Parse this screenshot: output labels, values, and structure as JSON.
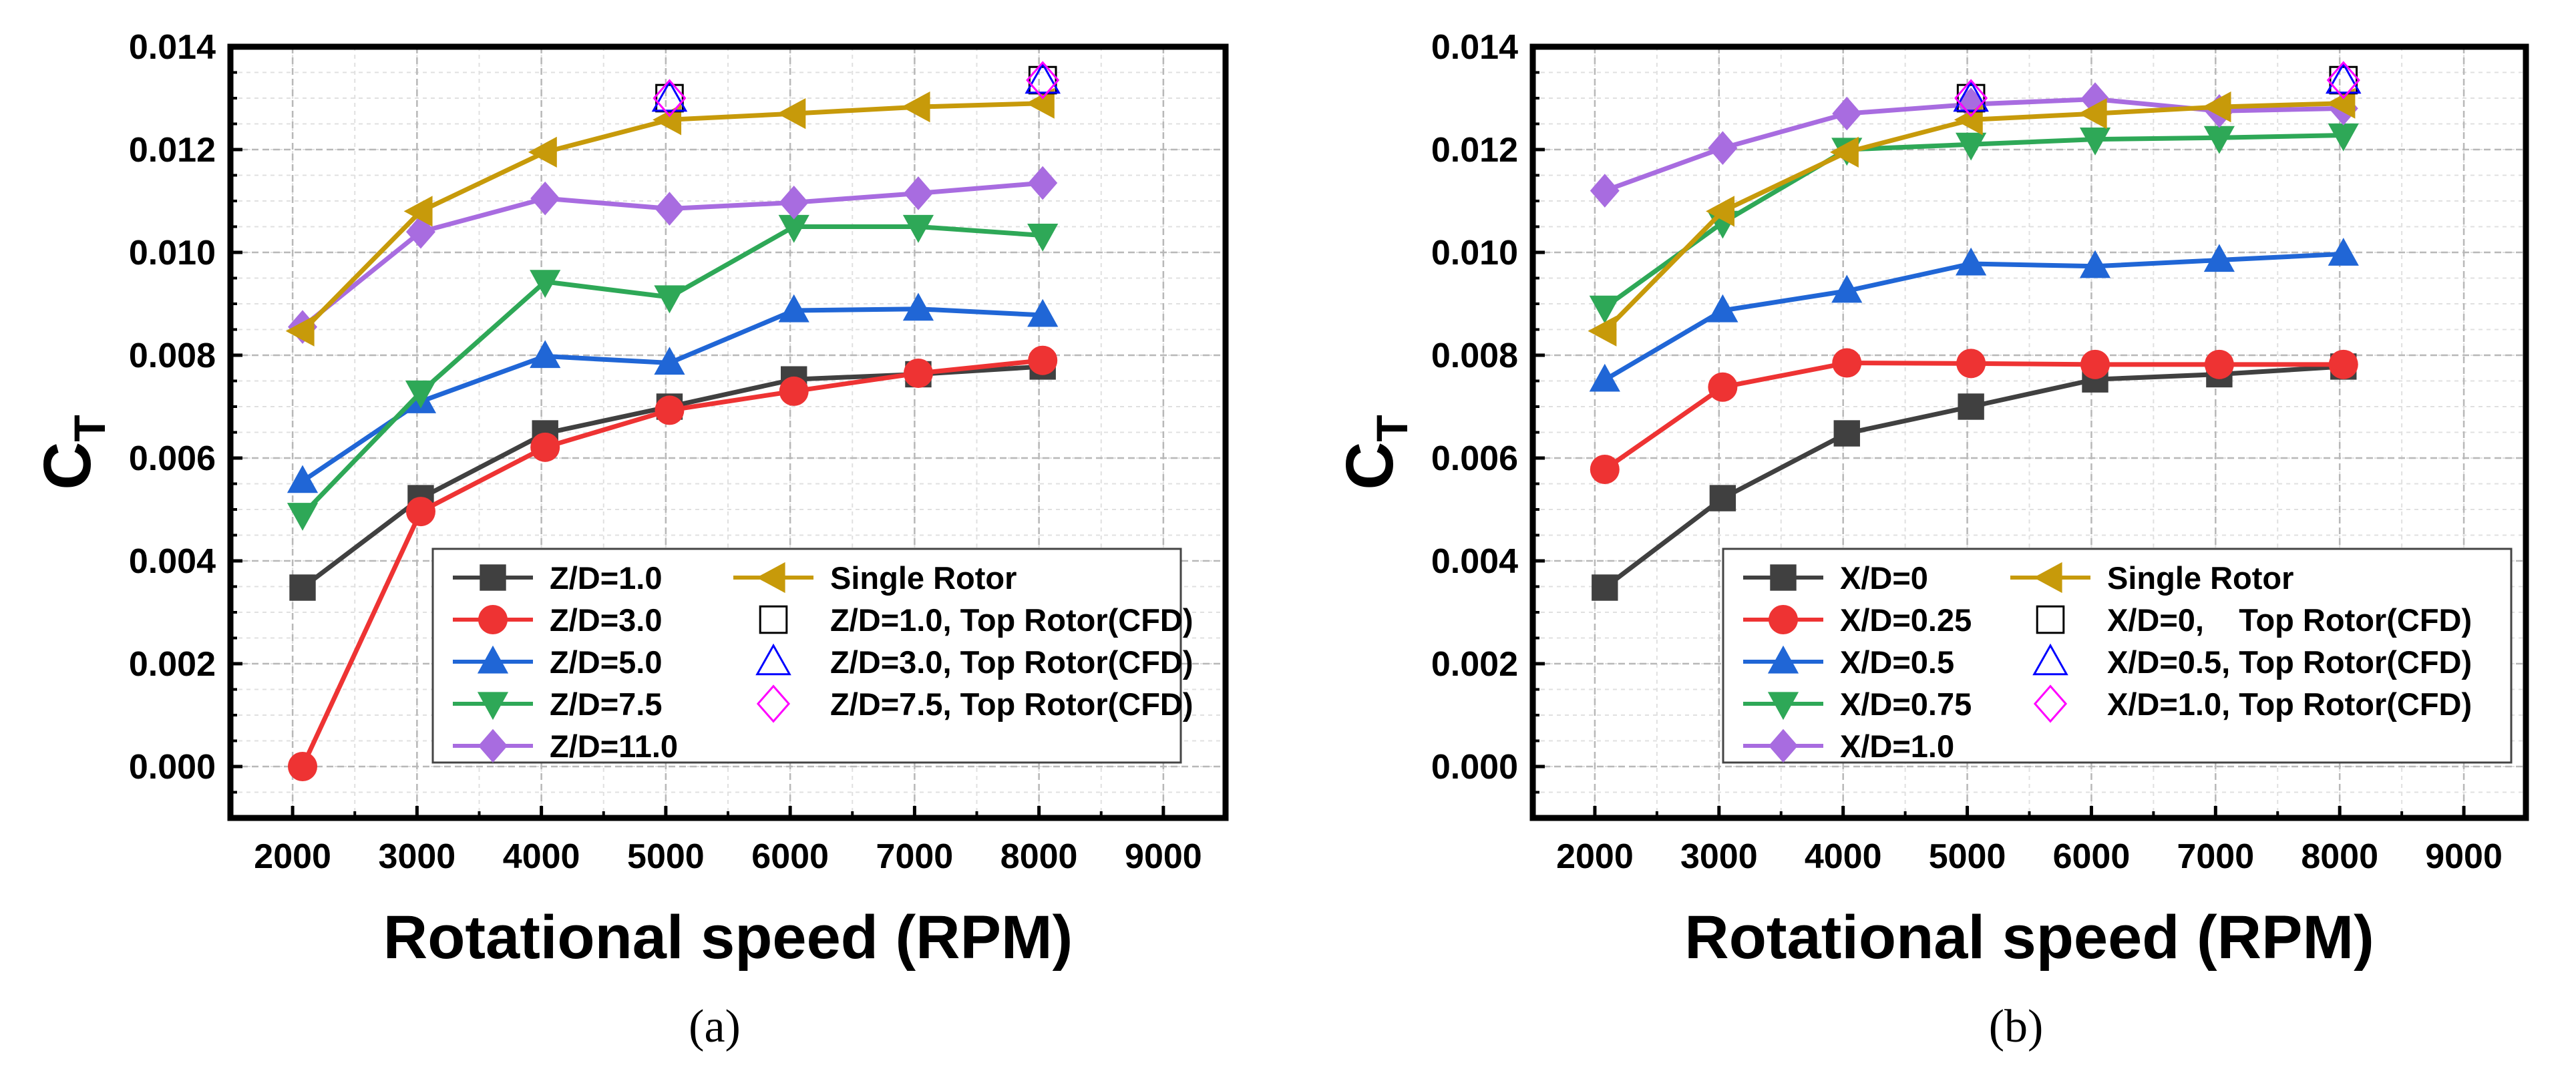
{
  "figure": {
    "panels": [
      "(a)",
      "(b)"
    ]
  },
  "colors": {
    "dark": "#404040",
    "red": "#EE3333",
    "blue": "#2066D6",
    "green": "#2EA857",
    "purple": "#A86CE0",
    "gold": "#C79A0A",
    "cfd_black": "#000000",
    "cfd_blue": "#0000FF",
    "cfd_magenta": "#FF00FF"
  },
  "chart_data": [
    {
      "type": "line",
      "panel_label": "(a)",
      "xlabel": "Rotational speed (RPM)",
      "ylabel_main": "C",
      "ylabel_sub": "T",
      "xlim": [
        1500,
        9500
      ],
      "ylim": [
        -0.001,
        0.014
      ],
      "xticks": [
        "2000",
        "3000",
        "4000",
        "5000",
        "6000",
        "7000",
        "8000",
        "9000"
      ],
      "yticks": [
        "0.000",
        "0.002",
        "0.004",
        "0.006",
        "0.008",
        "0.010",
        "0.012",
        "0.014"
      ],
      "grid": true,
      "legend_position": "bottom-center",
      "series": [
        {
          "name": "Z/D=1.0",
          "color": "dark",
          "marker": "square",
          "x": [
            2080,
            3030,
            4030,
            5030,
            6030,
            7030,
            8030
          ],
          "values": [
            0.00348,
            0.00522,
            0.00648,
            0.007,
            0.00753,
            0.00763,
            0.00778
          ]
        },
        {
          "name": "Z/D=3.0",
          "color": "red",
          "marker": "circle",
          "x": [
            2080,
            3030,
            4030,
            5030,
            6030,
            7030,
            8030
          ],
          "values": [
            0.0,
            0.00496,
            0.00621,
            0.00693,
            0.0073,
            0.00765,
            0.0079
          ]
        },
        {
          "name": "Z/D=5.0",
          "color": "blue",
          "marker": "triangle-up",
          "x": [
            2080,
            3030,
            4030,
            5030,
            6030,
            7030,
            8030
          ],
          "values": [
            0.00555,
            0.0071,
            0.00798,
            0.00785,
            0.00887,
            0.0089,
            0.00878
          ]
        },
        {
          "name": "Z/D=7.5",
          "color": "green",
          "marker": "triangle-down",
          "x": [
            2080,
            3030,
            4030,
            5030,
            6030,
            7030,
            8030
          ],
          "values": [
            0.0049,
            0.00728,
            0.00943,
            0.00913,
            0.0105,
            0.0105,
            0.01033
          ]
        },
        {
          "name": "Z/D=11.0",
          "color": "purple",
          "marker": "diamond",
          "x": [
            2080,
            3030,
            4030,
            5030,
            6030,
            7030,
            8030
          ],
          "values": [
            0.00855,
            0.0104,
            0.01105,
            0.01085,
            0.01097,
            0.01115,
            0.01135
          ]
        },
        {
          "name": "Single Rotor",
          "color": "gold",
          "marker": "triangle-left",
          "x": [
            2080,
            3030,
            4030,
            5030,
            6030,
            7030,
            8030
          ],
          "values": [
            0.00847,
            0.0108,
            0.01195,
            0.01258,
            0.0127,
            0.01283,
            0.0129
          ]
        },
        {
          "name": "Z/D=1.0, Top Rotor(CFD)",
          "color": "cfd_black",
          "marker": "open-square",
          "line": false,
          "x": [
            5030,
            8030
          ],
          "values": [
            0.013,
            0.01335
          ]
        },
        {
          "name": "Z/D=3.0, Top Rotor(CFD)",
          "color": "cfd_blue",
          "marker": "open-triangle",
          "line": false,
          "x": [
            5030,
            8030
          ],
          "values": [
            0.013,
            0.01335
          ]
        },
        {
          "name": "Z/D=7.5, Top Rotor(CFD)",
          "color": "cfd_magenta",
          "marker": "open-diamond",
          "line": false,
          "x": [
            5030,
            8030
          ],
          "values": [
            0.013,
            0.01335
          ]
        }
      ]
    },
    {
      "type": "line",
      "panel_label": "(b)",
      "xlabel": "Rotational speed (RPM)",
      "ylabel_main": "C",
      "ylabel_sub": "T",
      "xlim": [
        1500,
        9500
      ],
      "ylim": [
        -0.001,
        0.014
      ],
      "xticks": [
        "2000",
        "3000",
        "4000",
        "5000",
        "6000",
        "7000",
        "8000",
        "9000"
      ],
      "yticks": [
        "0.000",
        "0.002",
        "0.004",
        "0.006",
        "0.008",
        "0.010",
        "0.012",
        "0.014"
      ],
      "grid": true,
      "legend_position": "bottom-center",
      "series": [
        {
          "name": "X/D=0",
          "color": "dark",
          "marker": "square",
          "x": [
            2080,
            3030,
            4030,
            5030,
            6030,
            7030,
            8030
          ],
          "values": [
            0.00348,
            0.00522,
            0.00648,
            0.007,
            0.00753,
            0.00763,
            0.00778
          ]
        },
        {
          "name": "X/D=0.25",
          "color": "red",
          "marker": "circle",
          "x": [
            2080,
            3030,
            4030,
            5030,
            6030,
            7030,
            8030
          ],
          "values": [
            0.00578,
            0.00738,
            0.00785,
            0.00784,
            0.00782,
            0.00782,
            0.00782
          ]
        },
        {
          "name": "X/D=0.5",
          "color": "blue",
          "marker": "triangle-up",
          "x": [
            2080,
            3030,
            4030,
            5030,
            6030,
            7030,
            8030
          ],
          "values": [
            0.00752,
            0.00887,
            0.00925,
            0.00978,
            0.00973,
            0.00985,
            0.00997
          ]
        },
        {
          "name": "X/D=0.75",
          "color": "green",
          "marker": "triangle-down",
          "x": [
            2080,
            3030,
            4030,
            5030,
            6030,
            7030,
            8030
          ],
          "values": [
            0.00893,
            0.01058,
            0.012,
            0.0121,
            0.0122,
            0.01223,
            0.01228
          ]
        },
        {
          "name": "X/D=1.0",
          "color": "purple",
          "marker": "diamond",
          "x": [
            2080,
            3030,
            4030,
            5030,
            6030,
            7030,
            8030
          ],
          "values": [
            0.0112,
            0.01203,
            0.0127,
            0.01288,
            0.01298,
            0.01275,
            0.0128
          ]
        },
        {
          "name": "Single Rotor",
          "color": "gold",
          "marker": "triangle-left",
          "x": [
            2080,
            3030,
            4030,
            5030,
            6030,
            7030,
            8030
          ],
          "values": [
            0.00847,
            0.0108,
            0.01195,
            0.01258,
            0.0127,
            0.01283,
            0.0129
          ]
        },
        {
          "name": "X/D=0,    Top Rotor(CFD)",
          "color": "cfd_black",
          "marker": "open-square",
          "line": false,
          "x": [
            5030,
            8030
          ],
          "values": [
            0.013,
            0.01335
          ]
        },
        {
          "name": "X/D=0.5, Top Rotor(CFD)",
          "color": "cfd_blue",
          "marker": "open-triangle",
          "line": false,
          "x": [
            5030,
            8030
          ],
          "values": [
            0.013,
            0.01335
          ]
        },
        {
          "name": "X/D=1.0, Top Rotor(CFD)",
          "color": "cfd_magenta",
          "marker": "open-diamond",
          "line": false,
          "x": [
            5030,
            8030
          ],
          "values": [
            0.013,
            0.01335
          ]
        }
      ]
    }
  ]
}
